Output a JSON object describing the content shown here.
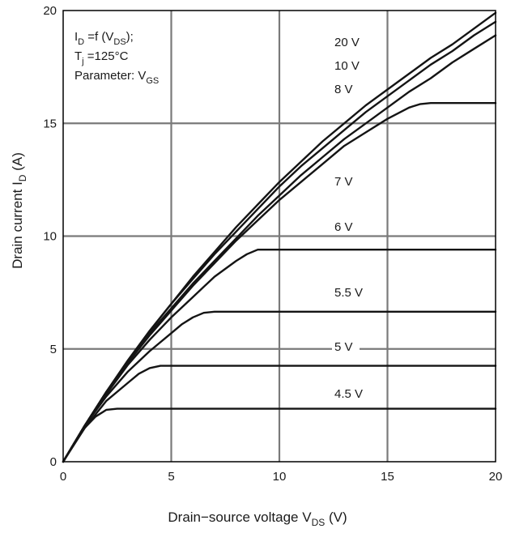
{
  "chart_data": {
    "type": "line",
    "xlabel": {
      "prefix": "Drain−source voltage V",
      "sub": "DS",
      "suffix": " (V)"
    },
    "ylabel": {
      "prefix": "Drain current I",
      "sub": "D",
      "suffix": " (A)"
    },
    "xlim": [
      0,
      20
    ],
    "ylim": [
      0,
      20
    ],
    "xticks": [
      "0",
      "5",
      "10",
      "15",
      "20"
    ],
    "yticks": [
      "0",
      "5",
      "10",
      "15",
      "20"
    ],
    "grid": true,
    "annotation": {
      "line1": {
        "a": "I",
        "a_sub": "D",
        "b": " =f (V",
        "b_sub": "DS",
        "c": ");"
      },
      "line2": {
        "a": "T",
        "a_sub": "j",
        "b": " =125°C"
      },
      "line3": {
        "a": "Parameter: V",
        "a_sub": "GS"
      }
    },
    "series": [
      {
        "name": "20 V",
        "x": [
          0,
          1,
          2,
          3,
          4,
          5,
          6,
          7,
          8,
          9,
          10,
          11,
          12,
          13,
          14,
          15,
          16,
          17,
          18,
          19,
          20
        ],
        "y": [
          0,
          1.6,
          3.1,
          4.5,
          5.8,
          7.0,
          8.2,
          9.3,
          10.4,
          11.4,
          12.4,
          13.3,
          14.2,
          15.0,
          15.8,
          16.5,
          17.2,
          17.9,
          18.5,
          19.2,
          19.9
        ]
      },
      {
        "name": "10 V",
        "x": [
          0,
          1,
          2,
          3,
          4,
          5,
          6,
          7,
          8,
          9,
          10,
          11,
          12,
          13,
          14,
          15,
          16,
          17,
          18,
          19,
          20
        ],
        "y": [
          0,
          1.6,
          3.1,
          4.5,
          5.8,
          7.0,
          8.1,
          9.2,
          10.2,
          11.2,
          12.2,
          13.1,
          13.9,
          14.7,
          15.5,
          16.2,
          16.9,
          17.6,
          18.2,
          18.9,
          19.5
        ]
      },
      {
        "name": "8 V",
        "x": [
          0,
          1,
          2,
          3,
          4,
          5,
          6,
          7,
          8,
          9,
          10,
          11,
          12,
          13,
          14,
          15,
          16,
          17,
          18,
          19,
          20
        ],
        "y": [
          0,
          1.6,
          3.1,
          4.4,
          5.7,
          6.8,
          7.9,
          8.9,
          9.9,
          10.9,
          11.8,
          12.7,
          13.5,
          14.3,
          15.0,
          15.7,
          16.4,
          17.0,
          17.7,
          18.3,
          18.9
        ]
      },
      {
        "name": "7 V",
        "x": [
          0,
          1,
          2,
          3,
          4,
          5,
          6,
          7,
          8,
          9,
          10,
          11,
          12,
          13,
          14,
          15,
          16,
          16.5,
          17,
          17.5,
          20
        ],
        "y": [
          0,
          1.6,
          3.1,
          4.4,
          5.6,
          6.7,
          7.8,
          8.8,
          9.8,
          10.7,
          11.6,
          12.4,
          13.2,
          14.0,
          14.6,
          15.2,
          15.7,
          15.85,
          15.9,
          15.9,
          15.9
        ]
      },
      {
        "name": "6 V",
        "x": [
          0,
          1,
          2,
          3,
          4,
          5,
          6,
          7,
          8,
          8.5,
          9,
          9.5,
          20
        ],
        "y": [
          0,
          1.6,
          3.0,
          4.3,
          5.4,
          6.4,
          7.3,
          8.2,
          8.9,
          9.2,
          9.4,
          9.4,
          9.4
        ]
      },
      {
        "name": "5.5 V",
        "x": [
          0,
          1,
          2,
          3,
          4,
          5,
          5.5,
          6,
          6.5,
          7,
          20
        ],
        "y": [
          0,
          1.6,
          2.9,
          4.0,
          4.9,
          5.7,
          6.1,
          6.4,
          6.6,
          6.65,
          6.65
        ]
      },
      {
        "name": "5 V",
        "x": [
          0,
          1,
          2,
          3,
          3.5,
          4,
          4.5,
          5,
          20
        ],
        "y": [
          0,
          1.5,
          2.7,
          3.5,
          3.9,
          4.15,
          4.25,
          4.25,
          4.25
        ]
      },
      {
        "name": "4.5 V",
        "x": [
          0,
          0.5,
          1,
          1.5,
          2,
          2.5,
          3,
          20
        ],
        "y": [
          0,
          0.8,
          1.5,
          2.0,
          2.3,
          2.35,
          2.35,
          2.35
        ]
      }
    ]
  }
}
